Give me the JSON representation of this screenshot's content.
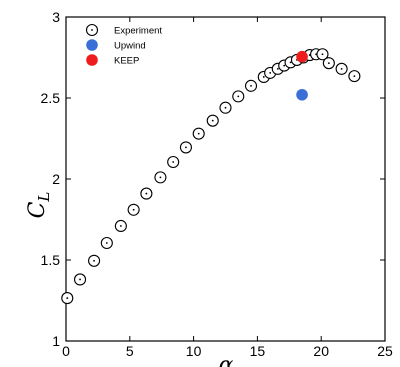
{
  "chart_data": {
    "type": "scatter",
    "title": "",
    "xlabel": "α",
    "ylabel": "C",
    "ylabel_subscript": "L",
    "xlim": [
      0,
      25
    ],
    "ylim": [
      1,
      3
    ],
    "x_ticks": [
      0,
      5,
      10,
      15,
      20,
      25
    ],
    "y_ticks": [
      1,
      1.5,
      2,
      2.5,
      3
    ],
    "x_tick_labels": [
      "0",
      "5",
      "10",
      "15",
      "20",
      "25"
    ],
    "y_tick_labels": [
      "1",
      "1.5",
      "2",
      "2.5",
      "3"
    ],
    "grid": false,
    "legend_position": "top-left",
    "series": [
      {
        "name": "Experiment",
        "marker": "open-circle-dot",
        "color": "#000000",
        "points": [
          [
            0.1,
            1.265
          ],
          [
            1.1,
            1.38
          ],
          [
            2.2,
            1.495
          ],
          [
            3.2,
            1.605
          ],
          [
            4.3,
            1.71
          ],
          [
            5.3,
            1.81
          ],
          [
            6.3,
            1.91
          ],
          [
            7.4,
            2.01
          ],
          [
            8.4,
            2.105
          ],
          [
            9.4,
            2.195
          ],
          [
            10.4,
            2.28
          ],
          [
            11.5,
            2.36
          ],
          [
            12.5,
            2.44
          ],
          [
            13.5,
            2.51
          ],
          [
            14.5,
            2.575
          ],
          [
            15.5,
            2.63
          ],
          [
            16.0,
            2.655
          ],
          [
            16.6,
            2.68
          ],
          [
            17.1,
            2.7
          ],
          [
            17.6,
            2.72
          ],
          [
            18.1,
            2.735
          ],
          [
            18.6,
            2.75
          ],
          [
            19.1,
            2.765
          ],
          [
            19.6,
            2.77
          ],
          [
            20.1,
            2.77
          ],
          [
            20.6,
            2.715
          ],
          [
            21.6,
            2.68
          ],
          [
            22.6,
            2.635
          ]
        ]
      },
      {
        "name": "Upwind",
        "marker": "filled-circle",
        "color": "#3a6fd8",
        "points": [
          [
            18.5,
            2.52
          ]
        ]
      },
      {
        "name": "KEEP",
        "marker": "filled-circle",
        "color": "#ee1c1c",
        "points": [
          [
            18.5,
            2.755
          ]
        ]
      }
    ]
  }
}
